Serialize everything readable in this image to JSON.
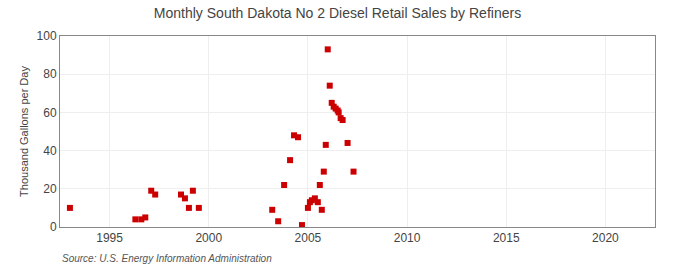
{
  "chart_data": {
    "type": "scatter",
    "title": "Monthly South Dakota No 2 Diesel Retail Sales by Refiners",
    "ylabel": "Thousand Gallons per Day",
    "annotations": [
      "Source: U.S. Energy Information Administration"
    ],
    "color": "#cc0000",
    "marker": "square",
    "grid": true,
    "xlim": [
      1992.5,
      2022.5
    ],
    "ylim": [
      0,
      100
    ],
    "xticks": [
      1995,
      2000,
      2005,
      2010,
      2015,
      2020
    ],
    "yticks": [
      0,
      20,
      40,
      60,
      80,
      100
    ],
    "x": [
      1993.0,
      1996.3,
      1996.6,
      1996.8,
      1997.1,
      1997.3,
      1998.6,
      1998.8,
      1999.0,
      1999.2,
      1999.5,
      2003.2,
      2003.5,
      2003.8,
      2004.1,
      2004.3,
      2004.5,
      2004.7,
      2005.0,
      2005.1,
      2005.2,
      2005.35,
      2005.5,
      2005.6,
      2005.7,
      2005.8,
      2005.9,
      2006.0,
      2006.1,
      2006.2,
      2006.3,
      2006.4,
      2006.5,
      2006.55,
      2006.65,
      2006.75,
      2007.0,
      2007.3
    ],
    "values": [
      10,
      4,
      4,
      5,
      19,
      17,
      17,
      15,
      10,
      19,
      10,
      9,
      3,
      22,
      35,
      48,
      47,
      1,
      10,
      13,
      14,
      15,
      13,
      22,
      9,
      29,
      43,
      93,
      74,
      65,
      63,
      62,
      61,
      60,
      57,
      56,
      44,
      29
    ]
  }
}
